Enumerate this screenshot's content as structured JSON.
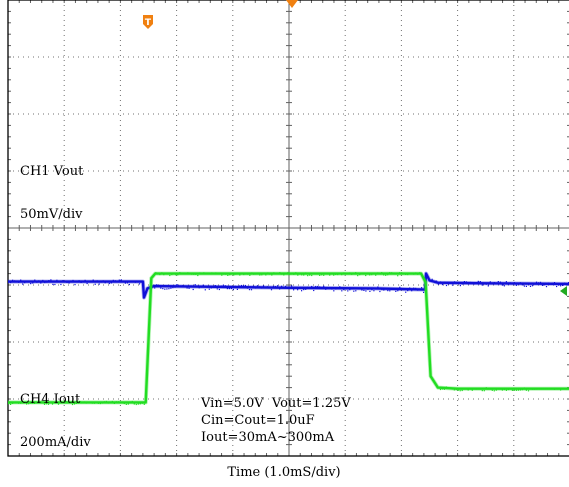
{
  "chart_data": {
    "type": "line",
    "grid": true,
    "grid_divisions": {
      "x": 10,
      "y": 8
    },
    "xlabel": "Time (1.0mS/div)",
    "x_unit": "div",
    "xlim": [
      0,
      10
    ],
    "channels": [
      {
        "name": "CH1",
        "signal": "Vout",
        "scale": "50mV/div",
        "color": "#1010d8",
        "points": [
          [
            0.0,
            4.94
          ],
          [
            2.4,
            4.94
          ],
          [
            2.42,
            5.22
          ],
          [
            2.48,
            5.06
          ],
          [
            2.6,
            5.02
          ],
          [
            3.5,
            5.03
          ],
          [
            5.0,
            5.05
          ],
          [
            6.5,
            5.06
          ],
          [
            7.42,
            5.08
          ],
          [
            7.44,
            4.8
          ],
          [
            7.5,
            4.92
          ],
          [
            7.65,
            4.96
          ],
          [
            8.5,
            4.97
          ],
          [
            10.0,
            4.98
          ]
        ]
      },
      {
        "name": "CH4",
        "signal": "Iout",
        "scale": "200mA/div",
        "color": "#22dd22",
        "points": [
          [
            0.0,
            7.06
          ],
          [
            2.45,
            7.06
          ],
          [
            2.55,
            4.88
          ],
          [
            2.62,
            4.8
          ],
          [
            7.35,
            4.8
          ],
          [
            7.43,
            4.95
          ],
          [
            7.52,
            6.6
          ],
          [
            7.65,
            6.8
          ],
          [
            8.0,
            6.82
          ],
          [
            10.0,
            6.82
          ]
        ]
      }
    ],
    "channel_labels": [
      {
        "text": "CH1  Vout",
        "y_div": 3.0
      },
      {
        "text": "50mV/div",
        "y_div": 3.75
      },
      {
        "text": "CH4  Iout",
        "y_div": 7.0
      },
      {
        "text": "200mA/div",
        "y_div": 7.75
      }
    ],
    "annotations": [
      "Vin=5.0V  Vout=1.25V",
      "Cin=Cout=1.0uF",
      "Iout=30mA~300mA"
    ],
    "markers": {
      "trigger": {
        "glyph": "T",
        "color": "#f08010"
      },
      "trigger_level": {
        "color": "#22aa22"
      },
      "top_center": {
        "color": "#f08010"
      }
    }
  }
}
